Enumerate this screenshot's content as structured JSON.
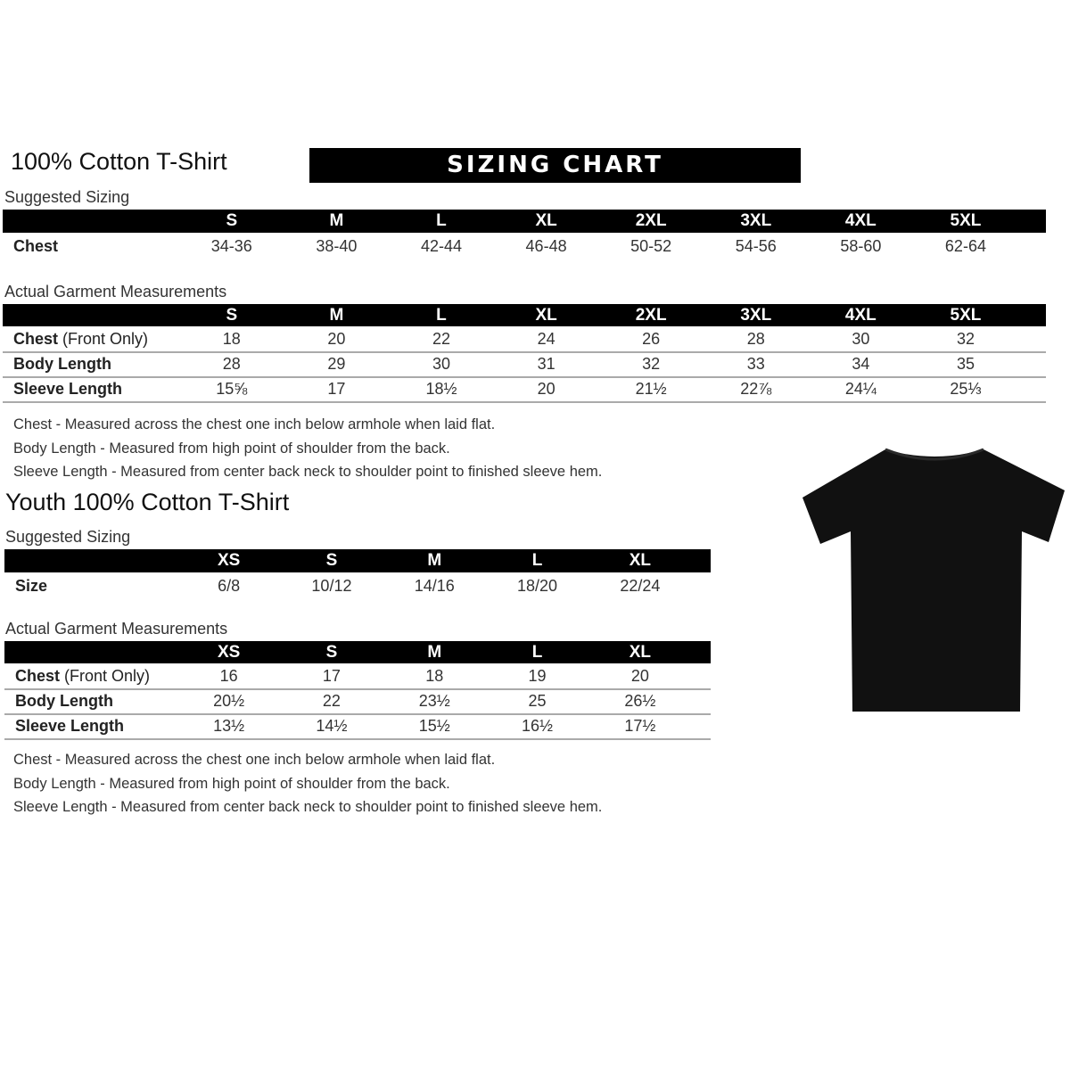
{
  "adult": {
    "title": "100% Cotton T-Shirt",
    "banner": "SIZING CHART",
    "suggested_label": "Suggested Sizing",
    "sizes": [
      "S",
      "M",
      "L",
      "XL",
      "2XL",
      "3XL",
      "4XL",
      "5XL"
    ],
    "suggested_rows": [
      {
        "label": "Chest",
        "values": [
          "34-36",
          "38-40",
          "42-44",
          "46-48",
          "50-52",
          "54-56",
          "58-60",
          "62-64"
        ]
      }
    ],
    "actual_label": "Actual Garment Measurements",
    "actual_rows": [
      {
        "label": "Chest",
        "label_note": " (Front Only)",
        "values": [
          "18",
          "20",
          "22",
          "24",
          "26",
          "28",
          "30",
          "32"
        ]
      },
      {
        "label": "Body Length",
        "label_note": "",
        "values": [
          "28",
          "29",
          "30",
          "31",
          "32",
          "33",
          "34",
          "35"
        ]
      },
      {
        "label": "Sleeve Length",
        "label_note": "",
        "values": [
          "15⅝",
          "17",
          "18½",
          "20",
          "21½",
          "22⅞",
          "24¼",
          "25⅓"
        ]
      }
    ],
    "notes": [
      "Chest - Measured across the chest one inch below armhole when laid flat.",
      "Body Length - Measured from high point of shoulder from the back.",
      "Sleeve Length - Measured from center back neck to shoulder point to finished sleeve hem."
    ]
  },
  "youth": {
    "title": "Youth 100% Cotton T-Shirt",
    "suggested_label": "Suggested Sizing",
    "sizes": [
      "XS",
      "S",
      "M",
      "L",
      "XL"
    ],
    "suggested_rows": [
      {
        "label": "Size",
        "values": [
          "6/8",
          "10/12",
          "14/16",
          "18/20",
          "22/24"
        ]
      }
    ],
    "actual_label": "Actual Garment Measurements",
    "actual_rows": [
      {
        "label": "Chest",
        "label_note": " (Front Only)",
        "values": [
          "16",
          "17",
          "18",
          "19",
          "20"
        ]
      },
      {
        "label": "Body Length",
        "label_note": "",
        "values": [
          "20½",
          "22",
          "23½",
          "25",
          "26½"
        ]
      },
      {
        "label": "Sleeve Length",
        "label_note": "",
        "values": [
          "13½",
          "14½",
          "15½",
          "16½",
          "17½"
        ]
      }
    ],
    "notes": [
      "Chest - Measured across the chest one inch below armhole when laid flat.",
      "Body Length - Measured from high point of shoulder from the back.",
      "Sleeve Length - Measured from center back neck to shoulder point to finished sleeve hem."
    ]
  },
  "image": {
    "icon": "tshirt-icon",
    "color": "#111111"
  }
}
